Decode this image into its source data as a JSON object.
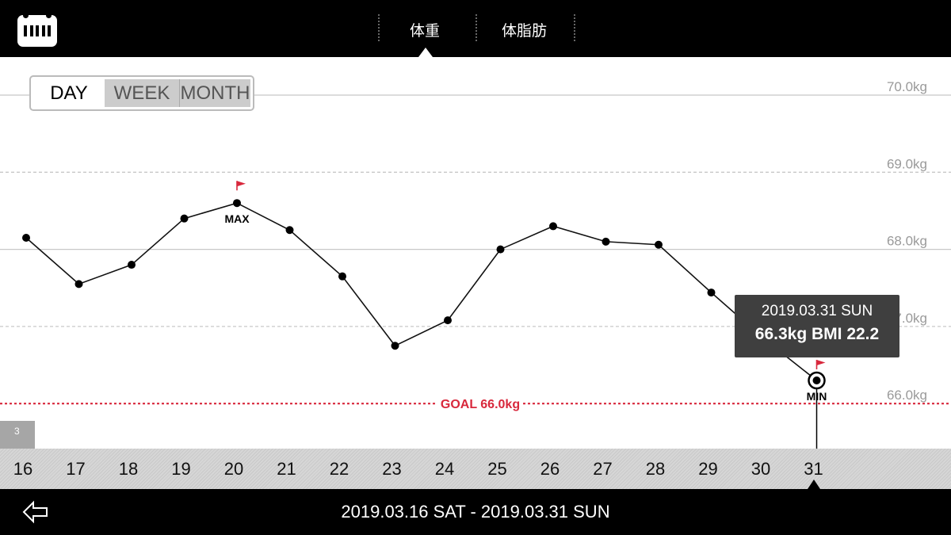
{
  "header": {
    "tabs": [
      {
        "label": "体重",
        "active": true
      },
      {
        "label": "体脂肪",
        "active": false
      }
    ]
  },
  "period_selector": {
    "options": [
      "DAY",
      "WEEK",
      "MONTH"
    ],
    "selected": "DAY"
  },
  "page_indicator": "3",
  "chart_data": {
    "type": "line",
    "x": [
      "16",
      "17",
      "18",
      "19",
      "20",
      "21",
      "22",
      "23",
      "24",
      "25",
      "26",
      "27",
      "28",
      "29",
      "30",
      "31"
    ],
    "values": [
      68.15,
      67.55,
      67.8,
      68.4,
      68.6,
      68.25,
      67.65,
      66.75,
      67.08,
      68.0,
      68.3,
      68.1,
      68.06,
      67.44,
      66.84,
      66.3
    ],
    "ylim": [
      65.9,
      70.0
    ],
    "y_ticks": [
      "70.0kg",
      "69.0kg",
      "68.0kg",
      "67.0kg",
      "66.0kg"
    ],
    "goal": {
      "value": 66.0,
      "label": "GOAL 66.0kg",
      "color": "#d8283c"
    },
    "max": {
      "index": 4,
      "label": "MAX"
    },
    "min": {
      "index": 15,
      "label": "MIN"
    },
    "selected_index": 15,
    "grid": true
  },
  "tooltip": {
    "date": "2019.03.31 SUN",
    "detail": "66.3kg  BMI 22.2"
  },
  "date_range": "2019.03.16 SAT - 2019.03.31 SUN",
  "colors": {
    "accent": "#d8283c",
    "bar": "#000000",
    "line": "#111111"
  },
  "icons": {
    "app": "scale-icon",
    "back": "back-arrow-icon",
    "flag": "flag-icon"
  }
}
